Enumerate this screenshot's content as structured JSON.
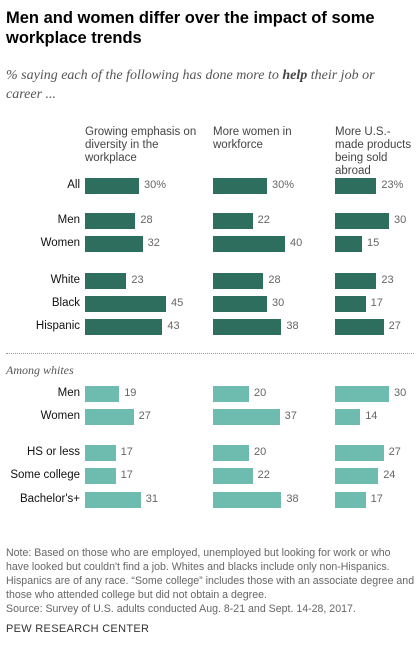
{
  "title": "Men and women differ over the impact of some workplace trends",
  "subtitle_pre": "% saying each of the following has done more to ",
  "subtitle_em": "help",
  "subtitle_post": " their job or career ...",
  "section_label": "Among whites",
  "note": "Note: Based on those who are employed, unemployed but looking for work or who have looked but couldn't find a job. Whites and blacks include only non-Hispanics. Hispanics are of any race. “Some college” includes those with an associate degree and those who attended college but did not obtain a degree.",
  "source": "Source: Survey of U.S. adults conducted Aug. 8-21 and Sept. 14-28, 2017.",
  "footer": "PEW RESEARCH CENTER",
  "colors": {
    "dark": "#2e6e5f",
    "light": "#6dbcaf"
  },
  "chart_data": {
    "type": "bar",
    "orientation": "horizontal",
    "categories": [
      "All",
      "Men",
      "Women",
      "White",
      "Black",
      "Hispanic",
      "Men",
      "Women",
      "HS or less",
      "Some college",
      "Bachelor's+"
    ],
    "category_groups": [
      "",
      "",
      "",
      "",
      "",
      "",
      "Among whites",
      "Among whites",
      "Among whites",
      "Among whites",
      "Among whites"
    ],
    "series": [
      {
        "name": "Growing emphasis on diversity in the workplace",
        "values": [
          30,
          28,
          32,
          23,
          45,
          43,
          19,
          27,
          17,
          17,
          31
        ]
      },
      {
        "name": "More women in workforce",
        "values": [
          30,
          22,
          40,
          28,
          30,
          38,
          20,
          37,
          20,
          22,
          38
        ]
      },
      {
        "name": "More U.S.-made products being sold abroad",
        "values": [
          23,
          30,
          15,
          23,
          17,
          27,
          30,
          14,
          27,
          24,
          17
        ]
      }
    ],
    "value_labels": [
      [
        "30%",
        "28",
        "32",
        "23",
        "45",
        "43",
        "19",
        "27",
        "17",
        "17",
        "31"
      ],
      [
        "30%",
        "22",
        "40",
        "28",
        "30",
        "38",
        "20",
        "37",
        "20",
        "22",
        "38"
      ],
      [
        "23%",
        "30",
        "15",
        "23",
        "17",
        "27",
        "30",
        "14",
        "27",
        "24",
        "17"
      ]
    ]
  }
}
